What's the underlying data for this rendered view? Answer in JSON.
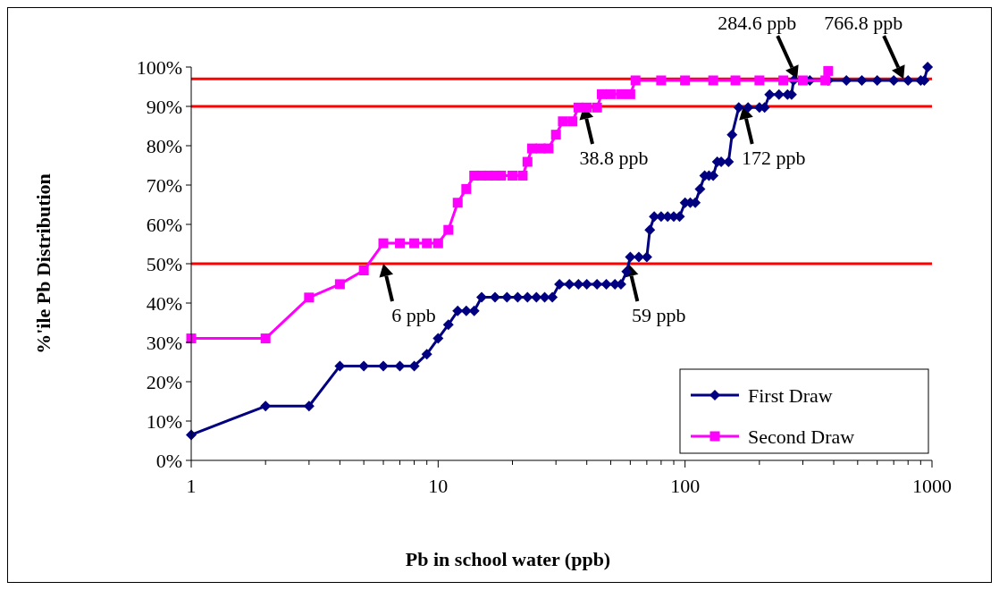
{
  "chart_data": {
    "type": "line",
    "xlabel": "Pb in school water (ppb)",
    "ylabel": "%'ile Pb Distribution",
    "log": "x",
    "xlim": [
      1,
      1000
    ],
    "ylim": [
      0,
      100
    ],
    "xticks": [
      1,
      {
        "value": 2,
        "label": null
      },
      {
        "value": 3,
        "label": null
      },
      {
        "value": 4,
        "label": null
      },
      {
        "value": 5,
        "label": null
      },
      {
        "value": 6,
        "label": null
      },
      {
        "value": 7,
        "label": null
      },
      {
        "value": 8,
        "label": null
      },
      {
        "value": 9,
        "label": null
      },
      10,
      {
        "value": 20,
        "label": null
      },
      {
        "value": 30,
        "label": null
      },
      {
        "value": 40,
        "label": null
      },
      {
        "value": 50,
        "label": null
      },
      {
        "value": 60,
        "label": null
      },
      {
        "value": 70,
        "label": null
      },
      {
        "value": 80,
        "label": null
      },
      {
        "value": 90,
        "label": null
      },
      100,
      {
        "value": 200,
        "label": null
      },
      {
        "value": 300,
        "label": null
      },
      {
        "value": 400,
        "label": null
      },
      {
        "value": 500,
        "label": null
      },
      {
        "value": 600,
        "label": null
      },
      {
        "value": 700,
        "label": null
      },
      {
        "value": 800,
        "label": null
      },
      {
        "value": 900,
        "label": null
      },
      1000
    ],
    "yticks": [
      {
        "value": 0,
        "label": "0%"
      },
      {
        "value": 10,
        "label": "10%"
      },
      {
        "value": 20,
        "label": "20%"
      },
      {
        "value": 30,
        "label": "30%"
      },
      {
        "value": 40,
        "label": "40%"
      },
      {
        "value": 50,
        "label": "50%"
      },
      {
        "value": 60,
        "label": "60%"
      },
      {
        "value": 70,
        "label": "70%"
      },
      {
        "value": 80,
        "label": "80%"
      },
      {
        "value": 90,
        "label": "90%"
      },
      {
        "value": 100,
        "label": "100%"
      }
    ],
    "grid": false,
    "legend": "bottom right",
    "series": [
      {
        "name": "First Draw",
        "color": "#000080",
        "marker": "diamond",
        "x": [
          1,
          2,
          3,
          4,
          5,
          6,
          7,
          8,
          9,
          10,
          11,
          12,
          13,
          14,
          15,
          17,
          19,
          21,
          23,
          25,
          27,
          29,
          31,
          34,
          37,
          40,
          44,
          48,
          52,
          55,
          58,
          60,
          65,
          70,
          72,
          75,
          80,
          85,
          90,
          95,
          100,
          105,
          110,
          115,
          120,
          125,
          130,
          135,
          140,
          150,
          155,
          165,
          180,
          200,
          210,
          220,
          240,
          260,
          270,
          275,
          320,
          380,
          450,
          520,
          600,
          700,
          800,
          900,
          930,
          960
        ],
        "values": [
          6.5,
          13.8,
          13.8,
          24,
          24,
          24,
          24,
          24,
          27,
          31,
          34.5,
          38,
          38,
          38,
          41.5,
          41.5,
          41.5,
          41.5,
          41.5,
          41.5,
          41.5,
          41.5,
          44.8,
          44.8,
          44.8,
          44.8,
          44.8,
          44.8,
          44.8,
          44.8,
          48,
          51.7,
          51.7,
          51.7,
          58.6,
          62,
          62,
          62,
          62,
          62,
          65.5,
          65.5,
          65.5,
          69,
          72.4,
          72.4,
          72.4,
          75.9,
          75.9,
          75.9,
          82.8,
          89.7,
          89.7,
          89.7,
          89.7,
          93,
          93,
          93,
          93,
          96.6,
          96.6,
          96.6,
          96.6,
          96.6,
          96.6,
          96.6,
          96.6,
          96.6,
          96.6,
          100
        ]
      },
      {
        "name": "Second Draw",
        "color": "#ff00ff",
        "marker": "square",
        "x": [
          1,
          2,
          3,
          4,
          5,
          6,
          7,
          8,
          9,
          10,
          11,
          12,
          13,
          14,
          15,
          16,
          17,
          18,
          20,
          22,
          23,
          24,
          26,
          28,
          30,
          32,
          35,
          37,
          40,
          44,
          46,
          50,
          55,
          60,
          63,
          80,
          100,
          130,
          160,
          200,
          250,
          300,
          370,
          380
        ],
        "values": [
          31,
          31,
          41.4,
          44.8,
          48.3,
          55.2,
          55.2,
          55.2,
          55.2,
          55.2,
          58.6,
          65.5,
          69,
          72.4,
          72.4,
          72.4,
          72.4,
          72.4,
          72.4,
          72.4,
          75.9,
          79.3,
          79.3,
          79.3,
          82.8,
          86.2,
          86.2,
          89.7,
          89.7,
          89.7,
          93.1,
          93.1,
          93.1,
          93.1,
          96.6,
          96.6,
          96.6,
          96.6,
          96.6,
          96.6,
          96.6,
          96.6,
          96.6,
          99
        ]
      }
    ],
    "ref_lines": [
      {
        "axis": "y",
        "value": 50,
        "color": "#ff0000"
      },
      {
        "axis": "y",
        "value": 90,
        "color": "#ff0000"
      },
      {
        "axis": "y",
        "value": 97,
        "color": "#ff0000"
      }
    ],
    "annotations": [
      {
        "text": "6 ppb",
        "x": 6,
        "y": 50
      },
      {
        "text": "38.8 ppb",
        "x": 38.8,
        "y": 90
      },
      {
        "text": "59 ppb",
        "x": 59,
        "y": 50
      },
      {
        "text": "172 ppb",
        "x": 172,
        "y": 90
      },
      {
        "text": "284.6 ppb",
        "x": 284.6,
        "y": 97
      },
      {
        "text": "766.8 ppb",
        "x": 766.8,
        "y": 97
      }
    ]
  }
}
